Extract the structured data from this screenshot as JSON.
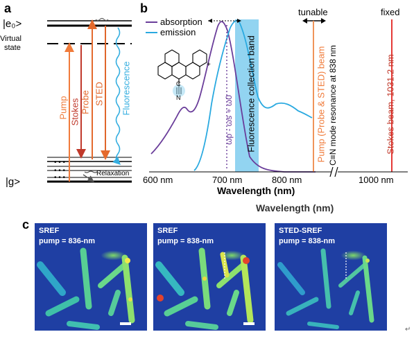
{
  "panel_a": {
    "letter": "a",
    "levels": {
      "e0": "|e₀>",
      "virtual": "Virtual",
      "state": "state",
      "ground": "|g>"
    },
    "arrows": {
      "pump": "Pump",
      "stokes": "Stokes",
      "probe": "Probe",
      "sted": "STED",
      "fluorescence": "Fluorescence",
      "relaxation": "Relaxation"
    },
    "colors": {
      "pump": "#f07b3a",
      "stokes": "#c0392b",
      "probe": "#e46a2d",
      "sted": "#e0662a",
      "fluorescence": "#35aee0"
    }
  },
  "panel_b": {
    "letter": "b",
    "legend": {
      "absorption": "absorption",
      "emission": "emission"
    },
    "labels": {
      "fluorescence_band": "Fluorescence collection band",
      "frequency": "ωp - ωs + ω0",
      "tunable": "tunable",
      "fixed": "fixed",
      "pump_beam": "Pump (Probe & STED) beam",
      "cn_mode": "C≡N mode resonance at 838 nm",
      "stokes_beam": "Stokes beam, 1031.2 nm",
      "molecule_plus": "+",
      "molecule_cn": "C",
      "molecule_n": "N",
      "xlabel": "Wavelength (nm)"
    },
    "ticks": [
      "600 nm",
      "700 nm",
      "800 nm",
      "1000 nm"
    ],
    "colors": {
      "absorption": "#6a3d9a",
      "emission": "#29a9e0",
      "band": "#7fcdee",
      "pump_line": "#f0945a",
      "stokes_line": "#e53935"
    }
  },
  "panel_c": {
    "letter": "c",
    "axis_label": "Wavelength (nm)",
    "images": [
      {
        "title": "SREF",
        "subtitle": "pump = 836-nm"
      },
      {
        "title": "SREF",
        "subtitle": "pump = 838-nm"
      },
      {
        "title": "STED-SREF",
        "subtitle": "pump = 838-nm"
      }
    ]
  },
  "corner_mark": "↵"
}
